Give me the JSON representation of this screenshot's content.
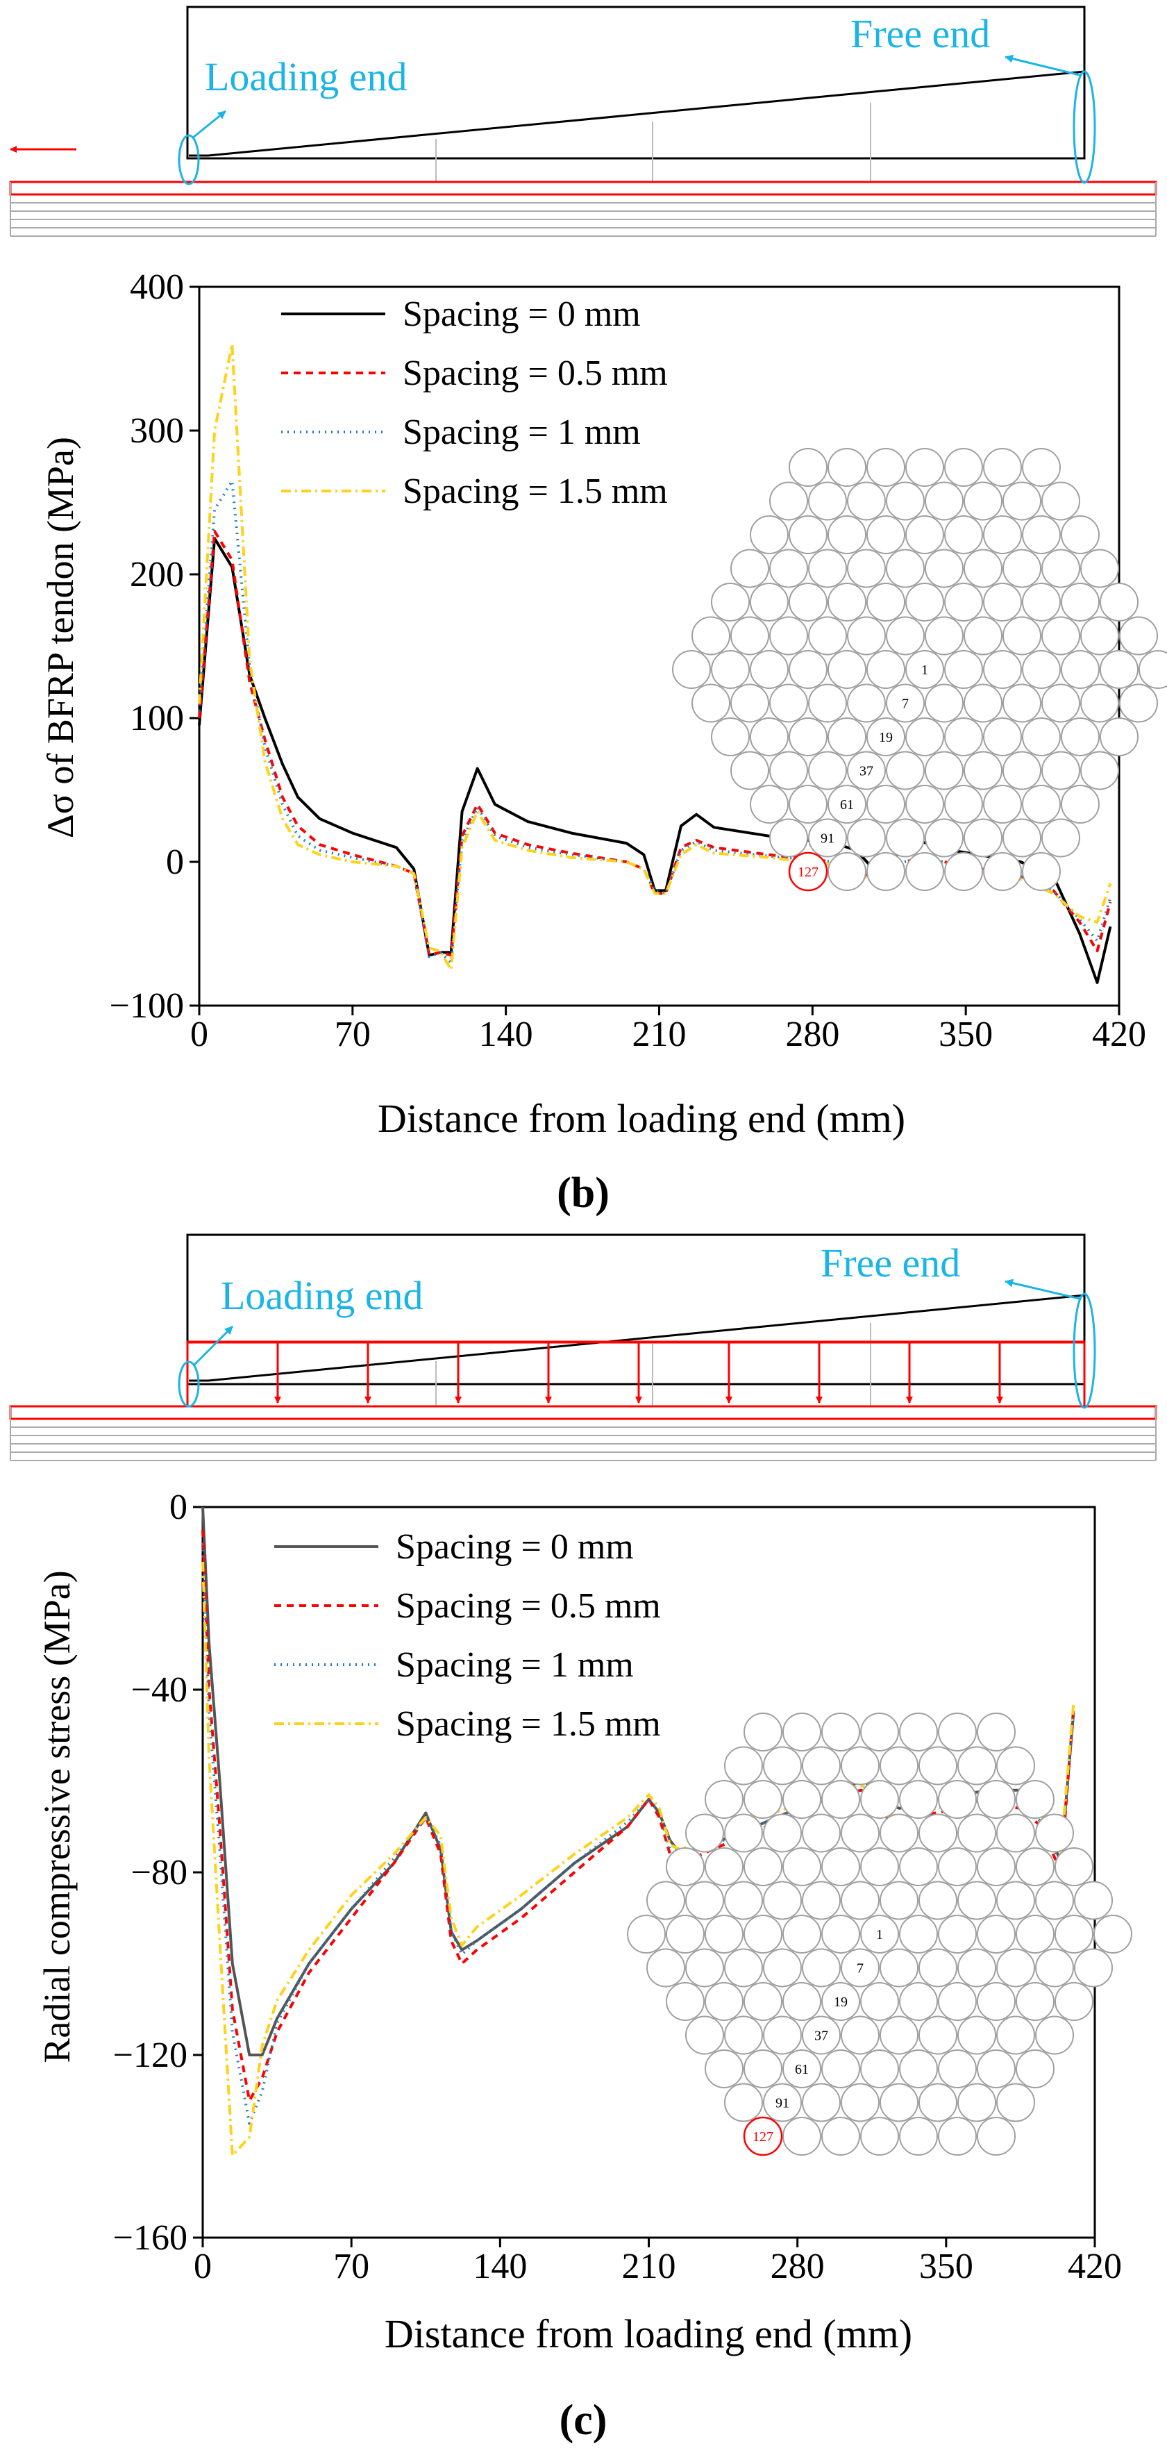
{
  "colors": {
    "series": [
      "#000000",
      "#ff0000",
      "#1f7fbf",
      "#ffd21a"
    ],
    "series_c": [
      "#555555",
      "#ff0000",
      "#1f7fbf",
      "#ffd21a"
    ],
    "cyan": "#1ab4e6",
    "red": "#ff0000",
    "grid_circle": "#a0a0a0"
  },
  "panel_b": {
    "caption": "(b)",
    "diagram": {
      "loading_end": "Loading end",
      "free_end": "Free end"
    },
    "hex_labels": [
      "1",
      "7",
      "19",
      "37",
      "61",
      "91",
      "127"
    ]
  },
  "panel_c": {
    "caption": "(c)",
    "diagram": {
      "loading_end": "Loading end",
      "free_end": "Free end"
    },
    "hex_labels": [
      "1",
      "7",
      "19",
      "37",
      "61",
      "91",
      "127"
    ]
  },
  "chart_data": [
    {
      "type": "line",
      "xlabel": "Distance from loading end (mm)",
      "ylabel": "Δσ of BFRP tendon (MPa)",
      "xlim": [
        0,
        420
      ],
      "ylim": [
        -100,
        400
      ],
      "xticks": [
        "0",
        "70",
        "140",
        "210",
        "280",
        "350",
        "420"
      ],
      "yticks": [
        "−100",
        "0",
        "100",
        "200",
        "300",
        "400"
      ],
      "legend_position": "top-left",
      "series": [
        {
          "name": "Spacing = 0 mm",
          "dash": "solid",
          "x": [
            0,
            7,
            15,
            23,
            30,
            38,
            45,
            55,
            70,
            90,
            98,
            105,
            110,
            115,
            120,
            127,
            135,
            150,
            170,
            195,
            203,
            208,
            213,
            220,
            227,
            235,
            260,
            290,
            300,
            306,
            314,
            322,
            330,
            340,
            375,
            390,
            402,
            410,
            416
          ],
          "y": [
            95,
            225,
            205,
            130,
            100,
            68,
            45,
            30,
            20,
            10,
            -5,
            -65,
            -63,
            -63,
            35,
            65,
            40,
            28,
            20,
            13,
            5,
            -20,
            -20,
            25,
            33,
            24,
            18,
            13,
            8,
            -2,
            -2,
            10,
            14,
            9,
            0,
            -10,
            -50,
            -84,
            -45
          ]
        },
        {
          "name": "Spacing = 0.5 mm",
          "dash": "10,8",
          "x": [
            0,
            7,
            15,
            23,
            30,
            38,
            45,
            55,
            70,
            90,
            98,
            105,
            110,
            115,
            120,
            127,
            135,
            150,
            170,
            195,
            203,
            208,
            213,
            220,
            227,
            235,
            260,
            290,
            300,
            306,
            314,
            322,
            330,
            340,
            375,
            390,
            402,
            410,
            416
          ],
          "y": [
            100,
            230,
            210,
            125,
            85,
            45,
            25,
            12,
            5,
            -3,
            -8,
            -65,
            -63,
            -65,
            18,
            40,
            20,
            12,
            6,
            0,
            -5,
            -22,
            -22,
            10,
            15,
            10,
            5,
            0,
            -5,
            -10,
            -12,
            0,
            3,
            0,
            -10,
            -20,
            -42,
            -62,
            -28
          ]
        },
        {
          "name": "Spacing = 1 mm",
          "dash": "2,7",
          "x": [
            0,
            7,
            15,
            23,
            30,
            38,
            45,
            55,
            70,
            90,
            98,
            105,
            110,
            115,
            120,
            127,
            135,
            150,
            170,
            195,
            203,
            208,
            213,
            220,
            227,
            235,
            260,
            290,
            300,
            306,
            314,
            322,
            330,
            340,
            375,
            390,
            402,
            410,
            416
          ],
          "y": [
            105,
            245,
            265,
            135,
            80,
            40,
            18,
            8,
            3,
            -3,
            -8,
            -66,
            -63,
            -70,
            15,
            38,
            18,
            10,
            5,
            0,
            -5,
            -20,
            -22,
            8,
            14,
            8,
            4,
            0,
            -5,
            -10,
            -12,
            0,
            3,
            0,
            -10,
            -20,
            -40,
            -55,
            -25
          ]
        },
        {
          "name": "Spacing = 1.5 mm",
          "dash": "14,6,3,6",
          "x": [
            0,
            7,
            15,
            23,
            30,
            38,
            45,
            55,
            70,
            90,
            98,
            105,
            110,
            115,
            120,
            127,
            135,
            150,
            170,
            195,
            203,
            208,
            213,
            220,
            227,
            235,
            260,
            290,
            300,
            306,
            314,
            322,
            330,
            340,
            375,
            390,
            402,
            410,
            416
          ],
          "y": [
            110,
            300,
            360,
            140,
            70,
            30,
            12,
            5,
            0,
            -3,
            -8,
            -60,
            -62,
            -75,
            10,
            35,
            15,
            8,
            3,
            0,
            -5,
            -22,
            -22,
            5,
            12,
            6,
            3,
            -2,
            -8,
            -12,
            -15,
            -2,
            2,
            -2,
            -12,
            -22,
            -38,
            -42,
            -15
          ]
        }
      ]
    },
    {
      "type": "line",
      "xlabel": "Distance from loading end (mm)",
      "ylabel": "Radial compressive stress (MPa)",
      "xlim": [
        0,
        420
      ],
      "ylim": [
        -160,
        0
      ],
      "xticks": [
        "0",
        "70",
        "140",
        "210",
        "280",
        "350",
        "420"
      ],
      "yticks": [
        "−160",
        "−120",
        "−80",
        "−40",
        "0"
      ],
      "legend_position": "top-left",
      "series": [
        {
          "name": "Spacing = 0 mm",
          "dash": "solid",
          "x": [
            0,
            3,
            8,
            14,
            22,
            28,
            35,
            50,
            70,
            90,
            105,
            112,
            117,
            122,
            129,
            150,
            175,
            200,
            210,
            215,
            220,
            225,
            250,
            275,
            300,
            310,
            315,
            322,
            328,
            345,
            370,
            385,
            395,
            404,
            410
          ],
          "y": [
            0,
            -30,
            -60,
            -100,
            -120,
            -120,
            -112,
            -100,
            -88,
            -78,
            -67,
            -75,
            -93,
            -97,
            -95,
            -88,
            -78,
            -70,
            -64,
            -67,
            -73,
            -76,
            -72,
            -67,
            -62,
            -60,
            -61,
            -65,
            -66,
            -64,
            -62,
            -62,
            -66,
            -78,
            -45
          ]
        },
        {
          "name": "Spacing = 0.5 mm",
          "dash": "10,8",
          "x": [
            0,
            3,
            8,
            14,
            22,
            28,
            35,
            50,
            70,
            90,
            105,
            112,
            117,
            122,
            129,
            150,
            175,
            200,
            210,
            215,
            220,
            225,
            250,
            275,
            300,
            310,
            315,
            322,
            328,
            345,
            370,
            385,
            395,
            404,
            410
          ],
          "y": [
            -5,
            -40,
            -70,
            -110,
            -130,
            -125,
            -115,
            -102,
            -90,
            -78,
            -68,
            -76,
            -95,
            -100,
            -97,
            -90,
            -80,
            -70,
            -64,
            -68,
            -76,
            -78,
            -73,
            -68,
            -63,
            -62,
            -63,
            -68,
            -69,
            -67,
            -65,
            -66,
            -70,
            -80,
            -44
          ]
        },
        {
          "name": "Spacing = 1 mm",
          "dash": "2,7",
          "x": [
            0,
            3,
            8,
            14,
            22,
            28,
            35,
            50,
            70,
            90,
            105,
            112,
            117,
            122,
            129,
            150,
            175,
            200,
            210,
            215,
            220,
            225,
            250,
            275,
            300,
            310,
            315,
            322,
            328,
            345,
            370,
            385,
            395,
            404,
            410
          ],
          "y": [
            -8,
            -45,
            -75,
            -115,
            -135,
            -128,
            -113,
            -100,
            -88,
            -77,
            -68,
            -74,
            -93,
            -98,
            -95,
            -88,
            -78,
            -69,
            -64,
            -67,
            -75,
            -77,
            -72,
            -67,
            -63,
            -62,
            -63,
            -67,
            -68,
            -66,
            -64,
            -65,
            -69,
            -78,
            -44
          ]
        },
        {
          "name": "Spacing = 1.5 mm",
          "dash": "14,6,3,6",
          "x": [
            0,
            3,
            8,
            14,
            22,
            28,
            35,
            50,
            70,
            90,
            105,
            112,
            117,
            122,
            129,
            150,
            175,
            200,
            210,
            215,
            220,
            225,
            250,
            275,
            300,
            310,
            315,
            322,
            328,
            345,
            370,
            385,
            395,
            404,
            410
          ],
          "y": [
            -12,
            -55,
            -95,
            -142,
            -138,
            -118,
            -108,
            -97,
            -85,
            -76,
            -68,
            -72,
            -90,
            -96,
            -92,
            -85,
            -76,
            -68,
            -63,
            -66,
            -74,
            -75,
            -70,
            -66,
            -62,
            -61,
            -62,
            -67,
            -68,
            -66,
            -64,
            -65,
            -68,
            -76,
            -43
          ]
        }
      ]
    }
  ]
}
